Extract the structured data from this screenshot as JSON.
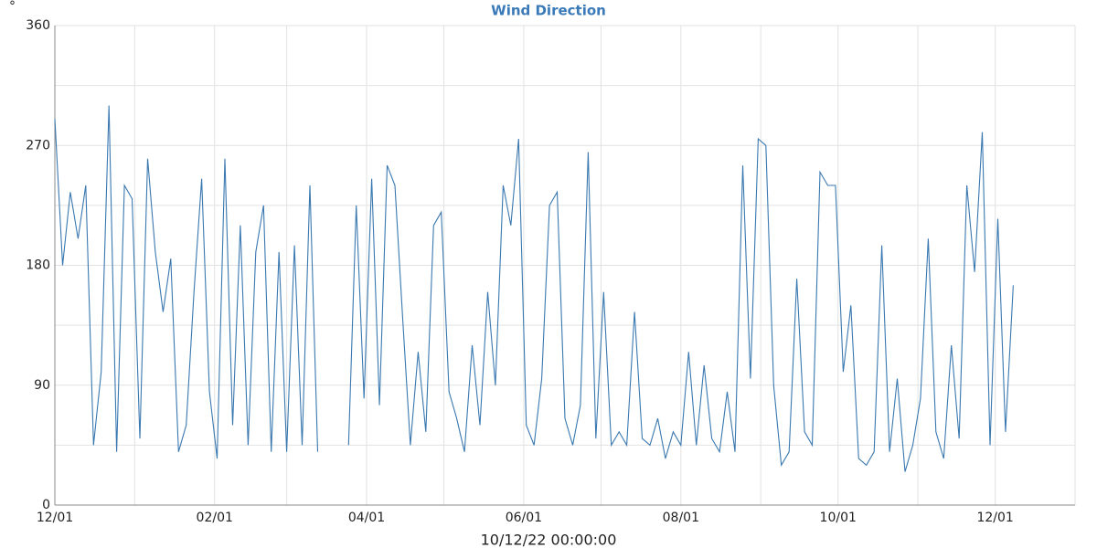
{
  "chart_data": {
    "type": "line",
    "title": "Wind Direction",
    "ylabel": "°",
    "xlabel": "10/12/22 00:00:00",
    "x": [
      "12/01",
      "12/04",
      "12/07",
      "12/10",
      "12/13",
      "12/16",
      "12/19",
      "12/22",
      "12/25",
      "12/28",
      "12/31",
      "01/03",
      "01/06",
      "01/09",
      "01/12",
      "01/15",
      "01/18",
      "01/21",
      "01/24",
      "01/27",
      "01/30",
      "02/02",
      "02/05",
      "02/08",
      "02/11",
      "02/14",
      "02/17",
      "02/20",
      "02/23",
      "02/26",
      "03/01",
      "03/04",
      "03/07",
      "03/10",
      "03/13",
      "03/16",
      "03/19",
      "03/22",
      "03/25",
      "03/28",
      "03/31",
      "04/03",
      "04/06",
      "04/09",
      "04/12",
      "04/15",
      "04/18",
      "04/21",
      "04/24",
      "04/27",
      "04/30",
      "05/03",
      "05/06",
      "05/09",
      "05/12",
      "05/15",
      "05/18",
      "05/21",
      "05/24",
      "05/27",
      "05/30",
      "06/02",
      "06/05",
      "06/08",
      "06/11",
      "06/14",
      "06/17",
      "06/20",
      "06/23",
      "06/26",
      "06/29",
      "07/02",
      "07/05",
      "07/08",
      "07/11",
      "07/14",
      "07/17",
      "07/20",
      "07/23",
      "07/26",
      "07/29",
      "08/01",
      "08/04",
      "08/07",
      "08/10",
      "08/13",
      "08/16",
      "08/19",
      "08/22",
      "08/25",
      "08/28",
      "08/31",
      "09/03",
      "09/06",
      "09/09",
      "09/12",
      "09/15",
      "09/18",
      "09/21",
      "09/24",
      "09/27",
      "09/30",
      "10/03",
      "10/06",
      "10/09",
      "10/12",
      "10/15",
      "10/18",
      "10/21",
      "10/24",
      "10/27",
      "10/30",
      "11/02",
      "11/05",
      "11/08",
      "11/11",
      "11/14",
      "11/17",
      "11/20",
      "11/23",
      "11/26",
      "11/29",
      "12/02",
      "12/05",
      "12/08"
    ],
    "series": [
      {
        "name": "Wind Direction",
        "color": "#3a78b0",
        "values": [
          290,
          180,
          235,
          200,
          240,
          45,
          100,
          300,
          40,
          240,
          230,
          50,
          260,
          190,
          145,
          185,
          40,
          60,
          160,
          245,
          85,
          35,
          260,
          60,
          210,
          45,
          190,
          225,
          40,
          190,
          40,
          195,
          45,
          240,
          40,
          null,
          null,
          null,
          45,
          225,
          80,
          245,
          75,
          255,
          240,
          140,
          45,
          115,
          55,
          210,
          220,
          85,
          65,
          40,
          120,
          60,
          160,
          90,
          240,
          210,
          275,
          60,
          45,
          95,
          225,
          235,
          65,
          45,
          75,
          265,
          50,
          160,
          45,
          55,
          45,
          145,
          50,
          45,
          65,
          35,
          55,
          45,
          115,
          45,
          105,
          50,
          40,
          85,
          40,
          255,
          95,
          275,
          270,
          90,
          30,
          40,
          170,
          55,
          45,
          250,
          240,
          240,
          100,
          150,
          35,
          30,
          40,
          195,
          40,
          95,
          25,
          45,
          80,
          200,
          55,
          35,
          120,
          50,
          240,
          175,
          280,
          45,
          215,
          55,
          165
        ]
      }
    ],
    "xlim": [
      "12/01",
      "01/01"
    ],
    "xticks": [
      "12/01",
      "02/01",
      "04/01",
      "06/01",
      "08/01",
      "10/01",
      "12/01"
    ],
    "xminor": [
      "01/01",
      "03/01",
      "05/01",
      "07/01",
      "09/01",
      "11/01",
      "01/01"
    ],
    "ylim": [
      0,
      360
    ],
    "yticks": [
      0,
      90,
      180,
      270,
      360
    ],
    "yminor": [
      45,
      135,
      225,
      315
    ],
    "grid": true
  }
}
